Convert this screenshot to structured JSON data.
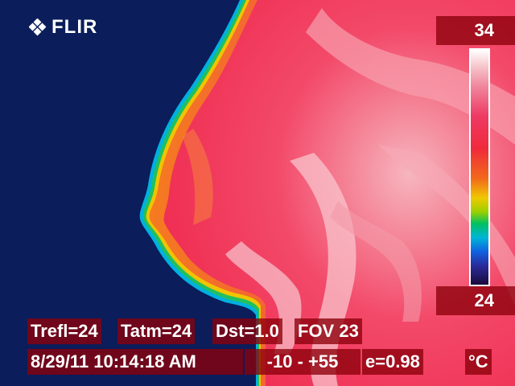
{
  "brand": {
    "name": "FLIR"
  },
  "scale": {
    "max": "34",
    "min": "24"
  },
  "unit": "°C",
  "params": {
    "trefl": "Trefl=24",
    "tatm": "Tatm=24",
    "dst": "Dst=1.0",
    "fov": "FOV 23"
  },
  "status": {
    "datetime": "8/29/11 10:14:18 AM",
    "range": "-10 -  +55",
    "emissivity": "e=0.98"
  },
  "colors": {
    "background": "#0b1d5a",
    "hud_box": "#8c000a",
    "text": "#ffffff"
  },
  "icons": {
    "logo": "flir-diamond-logo-icon"
  }
}
